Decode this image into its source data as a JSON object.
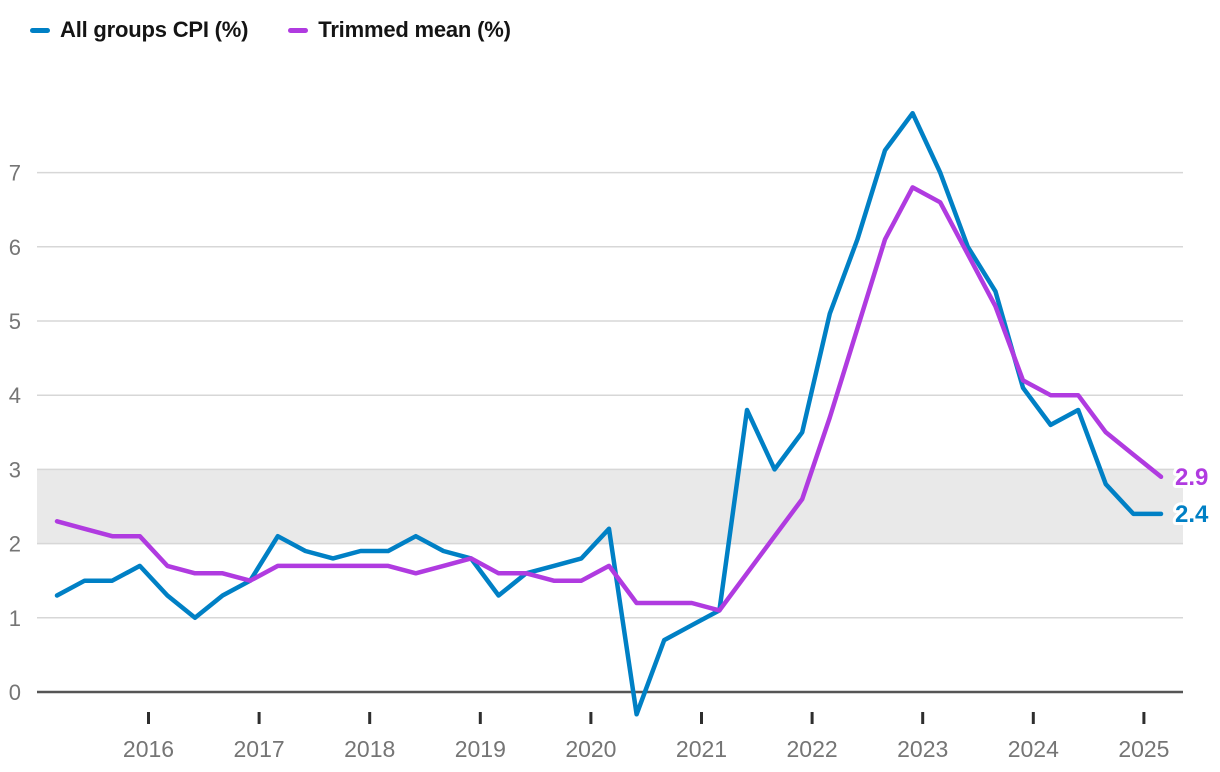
{
  "page": {
    "background": "#ffffff"
  },
  "legend": {
    "items": [
      {
        "label": "All groups CPI (%)",
        "color": "#0080C5"
      },
      {
        "label": "Trimmed mean (%)",
        "color": "#B03BE0"
      }
    ]
  },
  "chart_data": {
    "type": "line",
    "title": "",
    "xlabel": "",
    "ylabel": "",
    "x": [
      "2015 Q1",
      "2015 Q2",
      "2015 Q3",
      "2015 Q4",
      "2016 Q1",
      "2016 Q2",
      "2016 Q3",
      "2016 Q4",
      "2017 Q1",
      "2017 Q2",
      "2017 Q3",
      "2017 Q4",
      "2018 Q1",
      "2018 Q2",
      "2018 Q3",
      "2018 Q4",
      "2019 Q1",
      "2019 Q2",
      "2019 Q3",
      "2019 Q4",
      "2020 Q1",
      "2020 Q2",
      "2020 Q3",
      "2020 Q4",
      "2021 Q1",
      "2021 Q2",
      "2021 Q3",
      "2021 Q4",
      "2022 Q1",
      "2022 Q2",
      "2022 Q3",
      "2022 Q4",
      "2023 Q1",
      "2023 Q2",
      "2023 Q3",
      "2023 Q4",
      "2024 Q1",
      "2024 Q2",
      "2024 Q3",
      "2024 Q4",
      "2025 Q1"
    ],
    "series": [
      {
        "name": "All groups CPI (%)",
        "color": "#0080C5",
        "end_label": "2.4",
        "values": [
          1.3,
          1.5,
          1.5,
          1.7,
          1.3,
          1.0,
          1.3,
          1.5,
          2.1,
          1.9,
          1.8,
          1.9,
          1.9,
          2.1,
          1.9,
          1.8,
          1.3,
          1.6,
          1.7,
          1.8,
          2.2,
          -0.3,
          0.7,
          0.9,
          1.1,
          3.8,
          3.0,
          3.5,
          5.1,
          6.1,
          7.3,
          7.8,
          7.0,
          6.0,
          5.4,
          4.1,
          3.6,
          3.8,
          2.8,
          2.4,
          2.4
        ]
      },
      {
        "name": "Trimmed mean (%)",
        "color": "#B03BE0",
        "end_label": "2.9",
        "values": [
          2.3,
          2.2,
          2.1,
          2.1,
          1.7,
          1.6,
          1.6,
          1.5,
          1.7,
          1.7,
          1.7,
          1.7,
          1.7,
          1.6,
          1.7,
          1.8,
          1.6,
          1.6,
          1.5,
          1.5,
          1.7,
          1.2,
          1.2,
          1.2,
          1.1,
          1.6,
          2.1,
          2.6,
          3.7,
          4.9,
          6.1,
          6.8,
          6.6,
          5.9,
          5.2,
          4.2,
          4.0,
          4.0,
          3.5,
          3.2,
          2.9
        ]
      }
    ],
    "y_ticks": [
      0,
      1,
      2,
      3,
      4,
      5,
      6,
      7
    ],
    "x_tick_labels": [
      "2016",
      "2017",
      "2018",
      "2019",
      "2020",
      "2021",
      "2022",
      "2023",
      "2024",
      "2025"
    ],
    "ylim": [
      -0.5,
      8.1
    ],
    "band": {
      "from": 2,
      "to": 3,
      "color": "#E9E9E9"
    },
    "grid": "horizontal",
    "legend_position": "top-left",
    "axis_colors": {
      "grid": "#D7D7D7",
      "zero_line": "#555555",
      "tick": "#2E2E2E",
      "label": "#757575"
    }
  }
}
